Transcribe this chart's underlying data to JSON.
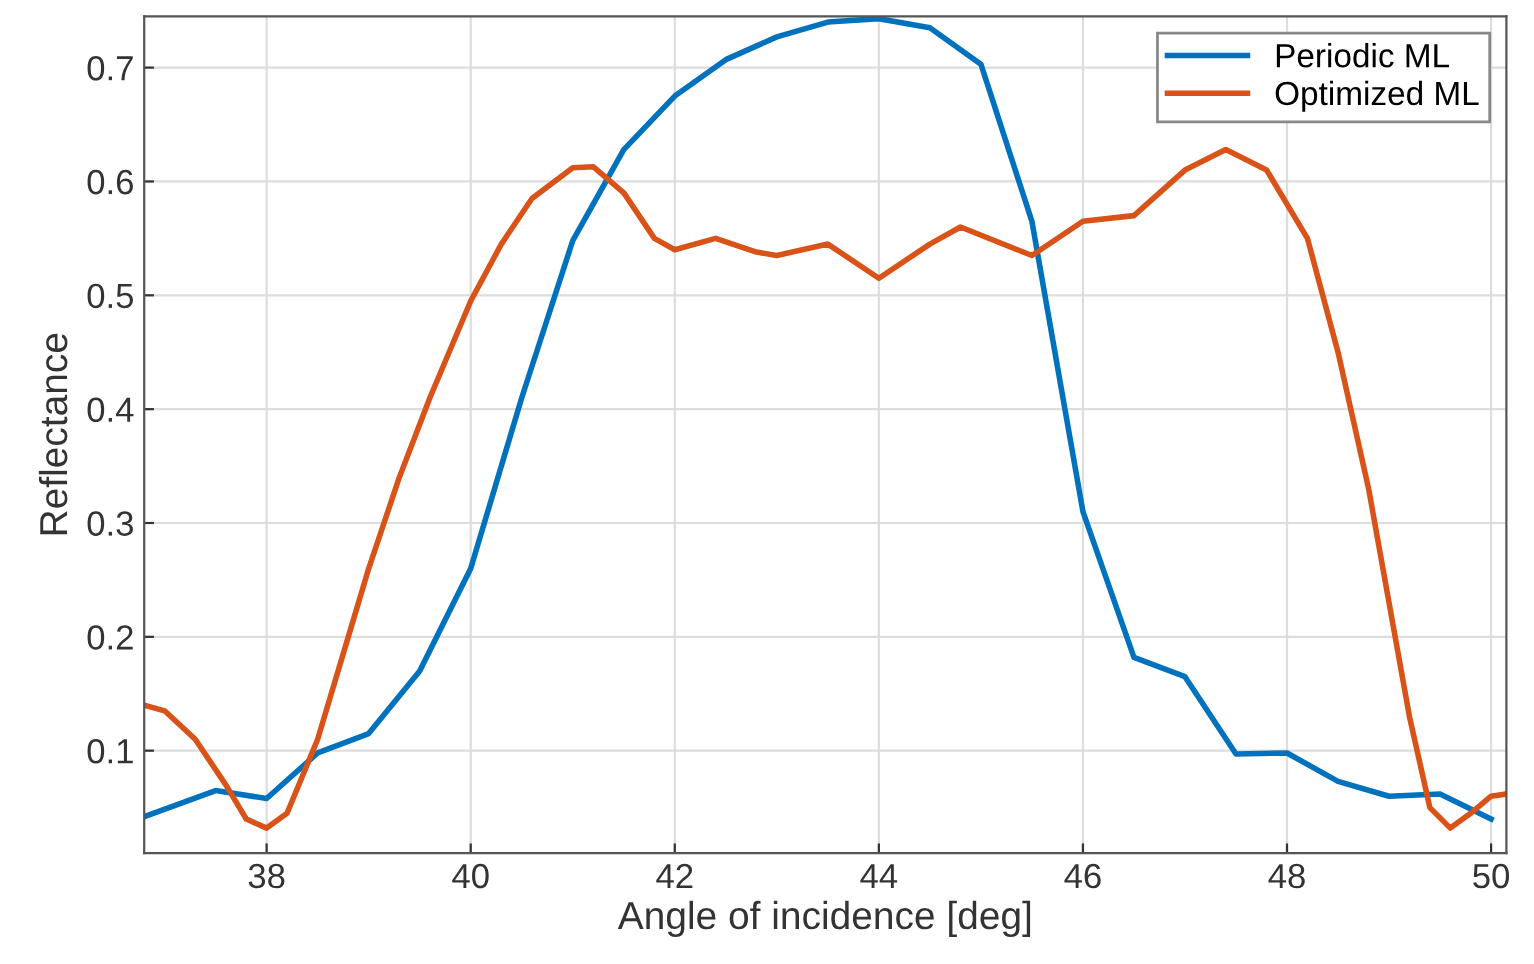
{
  "chart_data": {
    "type": "line",
    "xlabel": "Angle of incidence [deg]",
    "ylabel": "Reflectance",
    "xlim": [
      36.8,
      50.15
    ],
    "xticks": [
      38,
      40,
      42,
      44,
      46,
      48,
      50
    ],
    "ylim": [
      0.01,
      0.745
    ],
    "yticks": [
      0.1,
      0.2,
      0.3,
      0.4,
      0.5,
      0.6,
      0.7
    ],
    "grid": true,
    "legend": "top right",
    "line_style": "solid",
    "series": [
      {
        "name": "Periodic ML",
        "color": "#0072bd",
        "x": [
          36.8,
          37.5,
          38,
          38.5,
          39,
          39.5,
          40,
          40.5,
          41,
          41.5,
          42,
          42.5,
          43,
          43.5,
          44,
          44.5,
          45,
          45.5,
          46,
          46.5,
          47,
          47.5,
          48,
          48.5,
          49,
          49.5,
          50
        ],
        "values": [
          0.042,
          0.065,
          0.058,
          0.098,
          0.115,
          0.17,
          0.26,
          0.41,
          0.548,
          0.628,
          0.675,
          0.707,
          0.727,
          0.74,
          0.743,
          0.735,
          0.703,
          0.565,
          0.31,
          0.182,
          0.165,
          0.097,
          0.098,
          0.073,
          0.06,
          0.062,
          0.04
        ]
      },
      {
        "name": "Optimized ML",
        "color": "#d95319",
        "x": [
          36.8,
          37.0,
          37.3,
          37.6,
          37.8,
          38.0,
          38.2,
          38.5,
          38.8,
          39.0,
          39.3,
          39.6,
          40.0,
          40.3,
          40.6,
          41.0,
          41.2,
          41.5,
          41.8,
          42.0,
          42.4,
          42.8,
          43.0,
          43.5,
          44.0,
          44.5,
          44.8,
          45.5,
          46.0,
          46.5,
          47.0,
          47.4,
          47.8,
          48.2,
          48.5,
          48.8,
          49.0,
          49.2,
          49.4,
          49.6,
          49.8,
          50.0,
          50.15
        ],
        "values": [
          0.14,
          0.135,
          0.11,
          0.07,
          0.04,
          0.032,
          0.045,
          0.11,
          0.2,
          0.26,
          0.34,
          0.41,
          0.495,
          0.545,
          0.585,
          0.612,
          0.613,
          0.59,
          0.55,
          0.54,
          0.55,
          0.538,
          0.535,
          0.545,
          0.515,
          0.545,
          0.56,
          0.535,
          0.565,
          0.57,
          0.61,
          0.628,
          0.61,
          0.55,
          0.45,
          0.33,
          0.23,
          0.13,
          0.05,
          0.032,
          0.045,
          0.06,
          0.062
        ]
      }
    ]
  }
}
